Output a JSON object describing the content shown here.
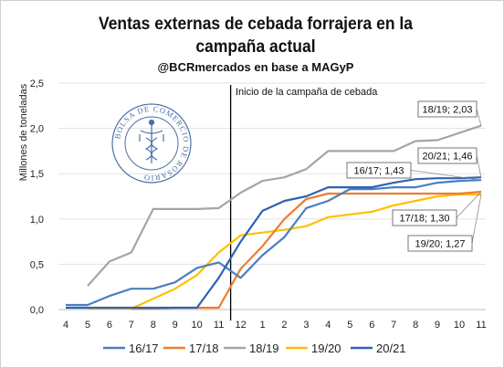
{
  "title": "Ventas externas de cebada forrajera en la campaña actual",
  "subtitle": "@BCRmercados en base a MAGyP",
  "chart_data": {
    "type": "line",
    "title": "Ventas externas de cebada forrajera en la campaña actual",
    "subtitle": "@BCRmercados en base a MAGyP",
    "ylabel": "Millones de toneladas",
    "xlabel": "",
    "x": [
      "4",
      "5",
      "6",
      "7",
      "8",
      "9",
      "10",
      "11",
      "12",
      "1",
      "2",
      "3",
      "4",
      "5",
      "6",
      "7",
      "8",
      "9",
      "10",
      "11"
    ],
    "ylim": [
      0,
      2.5
    ],
    "yticks": [
      "0,0",
      "0,5",
      "1,0",
      "1,5",
      "2,0",
      "2,5"
    ],
    "grid": true,
    "legend": "bottom",
    "campaign_start_label": "Inicio de la campaña de cebada",
    "series": [
      {
        "name": "16/17",
        "color": "#4a7fc1",
        "values": [
          0.05,
          0.05,
          0.15,
          0.23,
          0.23,
          0.3,
          0.46,
          0.52,
          0.35,
          0.6,
          0.8,
          1.12,
          1.2,
          1.33,
          1.33,
          1.35,
          1.35,
          1.4,
          1.42,
          1.43
        ]
      },
      {
        "name": "17/18",
        "color": "#ed7d31",
        "values": [
          null,
          null,
          null,
          0.01,
          0.01,
          0.02,
          0.02,
          0.02,
          0.45,
          0.7,
          1.0,
          1.22,
          1.28,
          1.28,
          1.28,
          1.28,
          1.28,
          1.28,
          1.28,
          1.3
        ]
      },
      {
        "name": "18/19",
        "color": "#a5a5a5",
        "values": [
          null,
          0.26,
          0.53,
          0.63,
          1.11,
          1.11,
          1.11,
          1.12,
          1.29,
          1.42,
          1.46,
          1.55,
          1.75,
          1.75,
          1.75,
          1.75,
          1.86,
          1.87,
          1.95,
          2.03
        ]
      },
      {
        "name": "19/20",
        "color": "#ffc000",
        "values": [
          null,
          0.01,
          0.01,
          0.01,
          0.12,
          0.23,
          0.38,
          0.63,
          0.82,
          0.85,
          0.88,
          0.92,
          1.02,
          1.05,
          1.08,
          1.15,
          1.2,
          1.25,
          1.27,
          1.27
        ]
      },
      {
        "name": "20/21",
        "color": "#2e62b5",
        "values": [
          0.02,
          0.02,
          0.02,
          0.02,
          0.02,
          0.02,
          0.02,
          0.35,
          0.75,
          1.09,
          1.2,
          1.25,
          1.35,
          1.35,
          1.35,
          1.4,
          1.44,
          1.45,
          1.45,
          1.46
        ]
      }
    ],
    "annotations": [
      "18/19; 2,03",
      "20/21; 1,46",
      "16/17; 1,43",
      "17/18; 1,30",
      "19/20; 1,27"
    ]
  },
  "seal": {
    "text": "BOLSA DE COMERCIO DE ROSARIO",
    "color": "#4b6fa8"
  }
}
